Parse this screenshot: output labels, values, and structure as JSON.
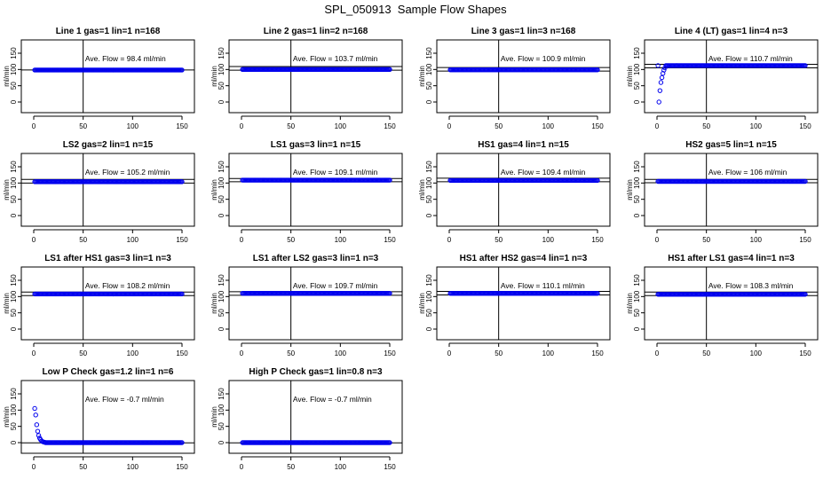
{
  "figure": {
    "title": "SPL_050913  Sample Flow Shapes"
  },
  "chart_data": [
    {
      "type": "scatter",
      "title": "Line 1 gas=1 lin=1 n=168",
      "ylabel": "ml/min",
      "xlim": [
        0,
        150
      ],
      "ylim": [
        0,
        150
      ],
      "xticks": [
        "0",
        "50",
        "100",
        "150"
      ],
      "yticks": [
        "0",
        "50",
        "100",
        "150"
      ],
      "vline_x": 50,
      "hlines": [
        98.4
      ],
      "annotation": "Ave. Flow =  98.4  ml/min",
      "series": [
        {
          "shape": "flat",
          "level": 98.4,
          "x_range": [
            1,
            150
          ]
        }
      ]
    },
    {
      "type": "scatter",
      "title": "Line 2 gas=1 lin=2 n=168",
      "ylabel": "ml/min",
      "xlim": [
        0,
        150
      ],
      "ylim": [
        0,
        150
      ],
      "xticks": [
        "0",
        "50",
        "100",
        "150"
      ],
      "yticks": [
        "0",
        "50",
        "100",
        "150"
      ],
      "vline_x": 50,
      "hlines": [
        98,
        109
      ],
      "annotation": "Ave. Flow =  103.7  ml/min",
      "series": [
        {
          "shape": "flat",
          "level": 100,
          "x_range": [
            1,
            150
          ]
        }
      ]
    },
    {
      "type": "scatter",
      "title": "Line 3 gas=1 lin=3 n=168",
      "ylabel": "ml/min",
      "xlim": [
        0,
        150
      ],
      "ylim": [
        0,
        150
      ],
      "xticks": [
        "0",
        "50",
        "100",
        "150"
      ],
      "yticks": [
        "0",
        "50",
        "100",
        "150"
      ],
      "vline_x": 50,
      "hlines": [
        95,
        106
      ],
      "annotation": "Ave. Flow =  100.9  ml/min",
      "series": [
        {
          "shape": "flat",
          "level": 99,
          "x_range": [
            1,
            150
          ]
        }
      ]
    },
    {
      "type": "scatter",
      "title": "Line 4 (LT) gas=1 lin=4 n=3",
      "ylabel": "ml/min",
      "xlim": [
        0,
        150
      ],
      "ylim": [
        0,
        150
      ],
      "xticks": [
        "0",
        "50",
        "100",
        "150"
      ],
      "yticks": [
        "0",
        "50",
        "100",
        "150"
      ],
      "vline_x": 50,
      "hlines": [
        105,
        116
      ],
      "annotation": "Ave. Flow =  110.7  ml/min",
      "series": [
        {
          "shape": "rise",
          "level": 112,
          "x_range": [
            1,
            150
          ],
          "start_points": [
            [
              2,
              0
            ],
            [
              3,
              35
            ],
            [
              4,
              60
            ],
            [
              5,
              75
            ],
            [
              6,
              88
            ],
            [
              7,
              98
            ],
            [
              8,
              105
            ]
          ]
        }
      ]
    },
    {
      "type": "scatter",
      "title": "LS2 gas=2 lin=1 n=15",
      "ylabel": "ml/min",
      "xlim": [
        0,
        150
      ],
      "ylim": [
        0,
        150
      ],
      "xticks": [
        "0",
        "50",
        "100",
        "150"
      ],
      "yticks": [
        "0",
        "50",
        "100",
        "150"
      ],
      "vline_x": 50,
      "hlines": [
        100,
        111
      ],
      "annotation": "Ave. Flow =  105.2  ml/min",
      "series": [
        {
          "shape": "flat",
          "level": 104,
          "x_range": [
            1,
            150
          ]
        }
      ]
    },
    {
      "type": "scatter",
      "title": "LS1 gas=3 lin=1 n=15",
      "ylabel": "ml/min",
      "xlim": [
        0,
        150
      ],
      "ylim": [
        0,
        150
      ],
      "xticks": [
        "0",
        "50",
        "100",
        "150"
      ],
      "yticks": [
        "0",
        "50",
        "100",
        "150"
      ],
      "vline_x": 50,
      "hlines": [
        104,
        114
      ],
      "annotation": "Ave. Flow =  109.1  ml/min",
      "series": [
        {
          "shape": "flat",
          "level": 109,
          "x_range": [
            1,
            150
          ]
        }
      ]
    },
    {
      "type": "scatter",
      "title": "HS1 gas=4 lin=1 n=15",
      "ylabel": "ml/min",
      "xlim": [
        0,
        150
      ],
      "ylim": [
        0,
        150
      ],
      "xticks": [
        "0",
        "50",
        "100",
        "150"
      ],
      "yticks": [
        "0",
        "50",
        "100",
        "150"
      ],
      "vline_x": 50,
      "hlines": [
        104,
        115
      ],
      "annotation": "Ave. Flow =  109.4  ml/min",
      "series": [
        {
          "shape": "flat",
          "level": 108,
          "x_range": [
            1,
            150
          ]
        }
      ]
    },
    {
      "type": "scatter",
      "title": "HS2 gas=5 lin=1 n=15",
      "ylabel": "ml/min",
      "xlim": [
        0,
        150
      ],
      "ylim": [
        0,
        150
      ],
      "xticks": [
        "0",
        "50",
        "100",
        "150"
      ],
      "yticks": [
        "0",
        "50",
        "100",
        "150"
      ],
      "vline_x": 50,
      "hlines": [
        101,
        111
      ],
      "annotation": "Ave. Flow =  106  ml/min",
      "series": [
        {
          "shape": "flat",
          "level": 105,
          "x_range": [
            1,
            150
          ]
        }
      ]
    },
    {
      "type": "scatter",
      "title": "LS1 after HS1 gas=3 lin=1 n=3",
      "ylabel": "ml/min",
      "xlim": [
        0,
        150
      ],
      "ylim": [
        0,
        150
      ],
      "xticks": [
        "0",
        "50",
        "100",
        "150"
      ],
      "yticks": [
        "0",
        "50",
        "100",
        "150"
      ],
      "vline_x": 50,
      "hlines": [
        103,
        114
      ],
      "annotation": "Ave. Flow =  108.2  ml/min",
      "series": [
        {
          "shape": "flat",
          "level": 108,
          "x_range": [
            1,
            150
          ]
        }
      ]
    },
    {
      "type": "scatter",
      "title": "LS1 after LS2 gas=3 lin=1 n=3",
      "ylabel": "ml/min",
      "xlim": [
        0,
        150
      ],
      "ylim": [
        0,
        150
      ],
      "xticks": [
        "0",
        "50",
        "100",
        "150"
      ],
      "yticks": [
        "0",
        "50",
        "100",
        "150"
      ],
      "vline_x": 50,
      "hlines": [
        104,
        115
      ],
      "annotation": "Ave. Flow =  109.7  ml/min",
      "series": [
        {
          "shape": "flat",
          "level": 110,
          "x_range": [
            1,
            150
          ]
        }
      ]
    },
    {
      "type": "scatter",
      "title": "HS1 after HS2 gas=4 lin=1 n=3",
      "ylabel": "ml/min",
      "xlim": [
        0,
        150
      ],
      "ylim": [
        0,
        150
      ],
      "xticks": [
        "0",
        "50",
        "100",
        "150"
      ],
      "yticks": [
        "0",
        "50",
        "100",
        "150"
      ],
      "vline_x": 50,
      "hlines": [
        105,
        116
      ],
      "annotation": "Ave. Flow =  110.1  ml/min",
      "series": [
        {
          "shape": "flat",
          "level": 110,
          "x_range": [
            1,
            150
          ]
        }
      ]
    },
    {
      "type": "scatter",
      "title": "HS1 after LS1 gas=4 lin=1 n=3",
      "ylabel": "ml/min",
      "xlim": [
        0,
        150
      ],
      "ylim": [
        0,
        150
      ],
      "xticks": [
        "0",
        "50",
        "100",
        "150"
      ],
      "yticks": [
        "0",
        "50",
        "100",
        "150"
      ],
      "vline_x": 50,
      "hlines": [
        103,
        114
      ],
      "annotation": "Ave. Flow =  108.3  ml/min",
      "series": [
        {
          "shape": "flat",
          "level": 107,
          "x_range": [
            1,
            150
          ]
        }
      ]
    },
    {
      "type": "scatter",
      "title": "Low P Check gas=1.2 lin=1 n=6",
      "ylabel": "ml/min",
      "xlim": [
        0,
        150
      ],
      "ylim": [
        0,
        150
      ],
      "xticks": [
        "0",
        "50",
        "100",
        "150"
      ],
      "yticks": [
        "0",
        "50",
        "100",
        "150"
      ],
      "vline_x": 50,
      "hlines": [
        -0.7
      ],
      "annotation": "Ave. Flow =  -0.7  ml/min",
      "series": [
        {
          "shape": "decay",
          "level": 0,
          "x_range": [
            1,
            150
          ],
          "start_points": [
            [
              1,
              105
            ],
            [
              2,
              85
            ],
            [
              3,
              55
            ],
            [
              4,
              35
            ],
            [
              5,
              22
            ],
            [
              6,
              14
            ],
            [
              7,
              9
            ],
            [
              8,
              5
            ],
            [
              9,
              3
            ],
            [
              10,
              2
            ],
            [
              11,
              1
            ]
          ]
        }
      ]
    },
    {
      "type": "scatter",
      "title": "High P Check gas=1 lin=0.8 n=3",
      "ylabel": "ml/min",
      "xlim": [
        0,
        150
      ],
      "ylim": [
        0,
        150
      ],
      "xticks": [
        "0",
        "50",
        "100",
        "150"
      ],
      "yticks": [
        "0",
        "50",
        "100",
        "150"
      ],
      "vline_x": 50,
      "hlines": [
        -0.7
      ],
      "annotation": "Ave. Flow =  -0.7  ml/min",
      "series": [
        {
          "shape": "flat",
          "level": 0,
          "x_range": [
            1,
            150
          ]
        }
      ]
    }
  ]
}
